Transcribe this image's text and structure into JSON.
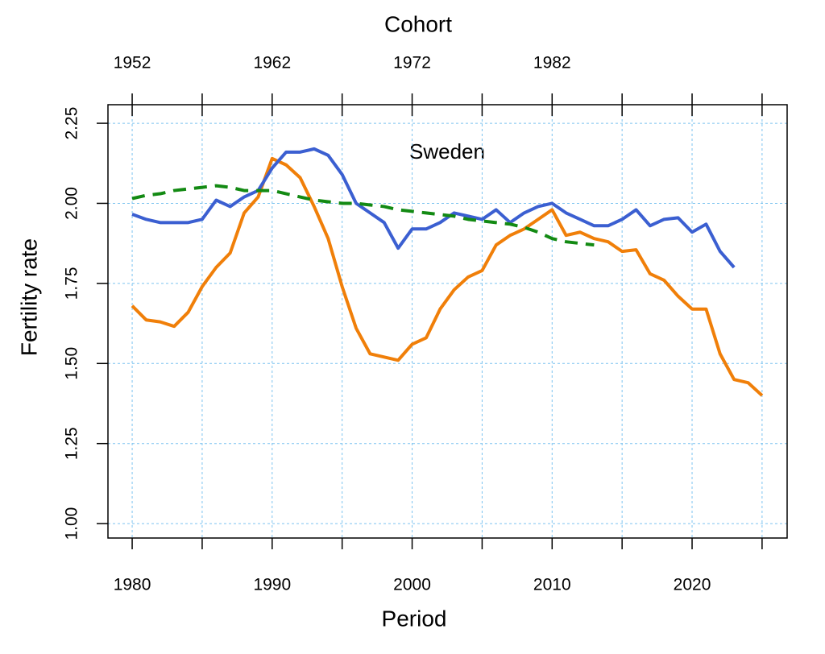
{
  "chart_data": {
    "type": "line",
    "x_label": "Period",
    "x2_label": "Cohort",
    "y_label": "Fertility rate",
    "annotation": "Sweden",
    "x": [
      1980,
      1981,
      1982,
      1983,
      1984,
      1985,
      1986,
      1987,
      1988,
      1989,
      1990,
      1991,
      1992,
      1993,
      1994,
      1995,
      1996,
      1997,
      1998,
      1999,
      2000,
      2001,
      2002,
      2003,
      2004,
      2005,
      2006,
      2007,
      2008,
      2009,
      2010,
      2011,
      2012,
      2013,
      2014,
      2015,
      2016,
      2017,
      2018,
      2019,
      2020,
      2021,
      2022,
      2023,
      2024,
      2025
    ],
    "series": [
      {
        "color": "#f07f09",
        "dash": "solid",
        "values": [
          1.68,
          1.636,
          1.63,
          1.616,
          1.66,
          1.74,
          1.8,
          1.845,
          1.97,
          2.02,
          2.14,
          2.12,
          2.08,
          1.99,
          1.89,
          1.74,
          1.61,
          1.53,
          1.52,
          1.51,
          1.56,
          1.58,
          1.67,
          1.73,
          1.77,
          1.79,
          1.87,
          1.9,
          1.92,
          1.95,
          1.98,
          1.9,
          1.91,
          1.89,
          1.88,
          1.85,
          1.855,
          1.78,
          1.76,
          1.71,
          1.67,
          1.67,
          1.53,
          1.45,
          1.44,
          1.4
        ]
      },
      {
        "color": "#3b5fd1",
        "dash": "solid",
        "values": [
          1.966,
          1.95,
          1.94,
          1.94,
          1.94,
          1.95,
          2.01,
          1.99,
          2.02,
          2.04,
          2.11,
          2.16,
          2.16,
          2.17,
          2.15,
          2.09,
          2.0,
          1.97,
          1.94,
          1.86,
          1.92,
          1.92,
          1.94,
          1.97,
          1.96,
          1.95,
          1.98,
          1.94,
          1.97,
          1.99,
          2.0,
          1.97,
          1.95,
          1.93,
          1.93,
          1.95,
          1.98,
          1.93,
          1.95,
          1.955,
          1.91,
          1.935,
          1.85,
          1.8,
          null,
          null
        ]
      },
      {
        "color": "#138a13",
        "dash": "dashed",
        "values": [
          2.015,
          2.025,
          2.03,
          2.04,
          2.045,
          2.05,
          2.055,
          2.05,
          2.04,
          2.04,
          2.04,
          2.03,
          2.02,
          2.01,
          2.005,
          2.0,
          2.0,
          1.995,
          1.99,
          1.98,
          1.975,
          1.97,
          1.965,
          1.96,
          1.95,
          1.945,
          1.94,
          1.935,
          1.925,
          1.91,
          1.89,
          1.88,
          1.875,
          1.87,
          null,
          null,
          null,
          null,
          null,
          null,
          null,
          null,
          null,
          null,
          null,
          null
        ]
      }
    ],
    "xlim": [
      1978.27,
      2026.79
    ],
    "xticks": [
      1980,
      1990,
      2000,
      2010,
      2020
    ],
    "x_minor_ticks": [
      1985,
      1995,
      2005,
      2015,
      2025
    ],
    "x2lim": [
      1950.27,
      1998.79
    ],
    "x2ticks": [
      1952,
      1962,
      1972,
      1982
    ],
    "x2_minor_ticks": [
      1957,
      1967,
      1977,
      1987,
      1992,
      1997
    ],
    "ylim": [
      0.955,
      2.308
    ],
    "yticks": [
      {
        "value": 1,
        "label": "1.00"
      },
      1.25,
      {
        "value": 1.5,
        "label": "1.50"
      },
      1.75,
      {
        "value": 2,
        "label": "2.00"
      },
      2.25
    ],
    "grid": true
  }
}
